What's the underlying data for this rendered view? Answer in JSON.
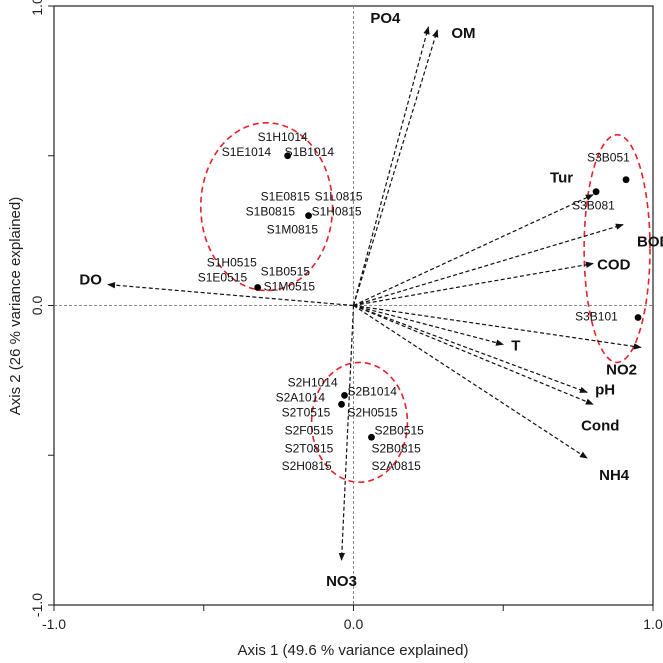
{
  "chart_data": {
    "type": "scatter",
    "subtype": "pca-biplot",
    "xlabel": "Axis 1 (49.6 % variance explained)",
    "ylabel": "Axis 2 (26 % variance explained)",
    "xlim": [
      -1.0,
      1.0
    ],
    "ylim": [
      -1.0,
      1.0
    ],
    "x_ticks": [
      {
        "value": -1.0,
        "label": "-1.0"
      },
      {
        "value": 0.0,
        "label": "0.0"
      },
      {
        "value": 1.0,
        "label": "1.0"
      }
    ],
    "y_ticks": [
      {
        "value": 1.0,
        "label": "1.0"
      },
      {
        "value": 0.0,
        "label": "0.0"
      },
      {
        "value": -1.0,
        "label": "-1.0"
      }
    ],
    "minor_ticks": [
      -0.5,
      0.5
    ],
    "zero_lines": true,
    "vectors": [
      {
        "name": "PO4",
        "x": 0.25,
        "y": 0.93
      },
      {
        "name": "OM",
        "x": 0.28,
        "y": 0.92
      },
      {
        "name": "DO",
        "x": -0.82,
        "y": 0.07
      },
      {
        "name": "Tur",
        "x": 0.8,
        "y": 0.37
      },
      {
        "name": "BOD",
        "x": 0.9,
        "y": 0.27
      },
      {
        "name": "COD",
        "x": 0.8,
        "y": 0.14
      },
      {
        "name": "NO2",
        "x": 0.96,
        "y": -0.14
      },
      {
        "name": "T",
        "x": 0.5,
        "y": -0.13
      },
      {
        "name": "pH",
        "x": 0.78,
        "y": -0.29
      },
      {
        "name": "Cond",
        "x": 0.8,
        "y": -0.33
      },
      {
        "name": "NH4",
        "x": 0.78,
        "y": -0.51
      },
      {
        "name": "NO3",
        "x": -0.04,
        "y": -0.85
      }
    ],
    "points": [
      {
        "x": -0.22,
        "y": 0.5
      },
      {
        "x": -0.15,
        "y": 0.3
      },
      {
        "x": -0.32,
        "y": 0.06
      },
      {
        "x": -0.03,
        "y": -0.3
      },
      {
        "x": -0.04,
        "y": -0.33
      },
      {
        "x": 0.06,
        "y": -0.44
      },
      {
        "x": 0.91,
        "y": 0.42
      },
      {
        "x": 0.81,
        "y": 0.38
      },
      {
        "x": 0.95,
        "y": -0.04
      }
    ],
    "point_labels": [
      {
        "text": "S1H1014",
        "x": -0.32,
        "y": 0.55
      },
      {
        "text": "S1E1014",
        "x": -0.44,
        "y": 0.5
      },
      {
        "text": "S1B1014",
        "x": -0.23,
        "y": 0.5
      },
      {
        "text": "S1E0815",
        "x": -0.31,
        "y": 0.35
      },
      {
        "text": "S1L0815",
        "x": -0.13,
        "y": 0.35
      },
      {
        "text": "S1B0815",
        "x": -0.36,
        "y": 0.3
      },
      {
        "text": "S1H0815",
        "x": -0.14,
        "y": 0.3
      },
      {
        "text": "S1M0815",
        "x": -0.29,
        "y": 0.24
      },
      {
        "text": "S1H0515",
        "x": -0.49,
        "y": 0.13
      },
      {
        "text": "S1B0515",
        "x": -0.31,
        "y": 0.1
      },
      {
        "text": "S1E0515",
        "x": -0.52,
        "y": 0.08
      },
      {
        "text": "S1M0515",
        "x": -0.3,
        "y": 0.05
      },
      {
        "text": "S2H1014",
        "x": -0.22,
        "y": -0.27
      },
      {
        "text": "S2B1014",
        "x": -0.02,
        "y": -0.3
      },
      {
        "text": "S2A1014",
        "x": -0.26,
        "y": -0.32
      },
      {
        "text": "S2T0515",
        "x": -0.24,
        "y": -0.37
      },
      {
        "text": "S2H0515",
        "x": -0.02,
        "y": -0.37
      },
      {
        "text": "S2F0515",
        "x": -0.23,
        "y": -0.43
      },
      {
        "text": "S2B0515",
        "x": 0.07,
        "y": -0.43
      },
      {
        "text": "S2T0815",
        "x": -0.23,
        "y": -0.49
      },
      {
        "text": "S2B0815",
        "x": 0.06,
        "y": -0.49
      },
      {
        "text": "S2H0815",
        "x": -0.24,
        "y": -0.55
      },
      {
        "text": "S2A0815",
        "x": 0.06,
        "y": -0.55
      },
      {
        "text": "S3B051",
        "x": 0.78,
        "y": 0.48
      },
      {
        "text": "S3B081",
        "x": 0.73,
        "y": 0.32
      },
      {
        "text": "S3B101",
        "x": 0.74,
        "y": -0.05
      }
    ],
    "ellipses": [
      {
        "cx": -0.29,
        "cy": 0.33,
        "rx": 0.22,
        "ry": 0.28
      },
      {
        "cx": 0.02,
        "cy": -0.39,
        "rx": 0.16,
        "ry": 0.2
      },
      {
        "cx": 0.88,
        "cy": 0.19,
        "rx": 0.11,
        "ry": 0.38
      }
    ],
    "colors": {
      "axis": "#222222",
      "zero_line": "#8a8a8a",
      "vector": "#111111",
      "ellipse": "#e8202a",
      "point": "#000000"
    }
  }
}
